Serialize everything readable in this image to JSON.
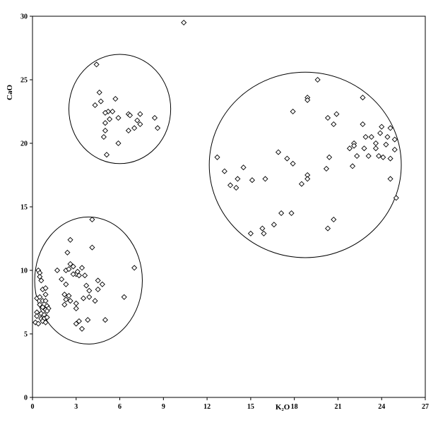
{
  "chart_data": {
    "type": "scatter",
    "title": "",
    "xlabel": "K₂O",
    "ylabel": "CaO",
    "xlim": [
      0,
      27
    ],
    "ylim": [
      0,
      30
    ],
    "x_ticks": [
      0,
      3,
      6,
      9,
      12,
      15,
      18,
      21,
      24,
      27
    ],
    "y_ticks": [
      0,
      5,
      10,
      15,
      20,
      25,
      30
    ],
    "x_tick_labels": [
      "0",
      "3",
      "6",
      "9",
      "12",
      "15",
      "18",
      "21",
      "24",
      "27"
    ],
    "y_tick_labels": [
      "0",
      "5",
      "10",
      "15",
      "20",
      "25",
      "30"
    ],
    "grid": false,
    "marker": "diamond",
    "clusters": [
      {
        "cx": 6.0,
        "cy": 22.7,
        "rx": 3.5,
        "ry": 4.3
      },
      {
        "cx": 3.85,
        "cy": 9.2,
        "rx": 3.7,
        "ry": 5.0
      },
      {
        "cx": 18.75,
        "cy": 18.3,
        "rx": 6.6,
        "ry": 7.3
      }
    ],
    "series": [
      {
        "points": [
          [
            10.4,
            29.5
          ],
          [
            4.4,
            26.2
          ],
          [
            4.6,
            24.0
          ],
          [
            4.3,
            23.0
          ],
          [
            4.7,
            23.3
          ],
          [
            5.2,
            22.5
          ],
          [
            5.5,
            22.5
          ],
          [
            5.7,
            23.5
          ],
          [
            5.0,
            22.4
          ],
          [
            5.0,
            21.6
          ],
          [
            5.3,
            21.9
          ],
          [
            5.9,
            22.0
          ],
          [
            6.6,
            22.3
          ],
          [
            6.7,
            22.2
          ],
          [
            7.2,
            21.8
          ],
          [
            7.4,
            22.3
          ],
          [
            8.4,
            22.0
          ],
          [
            8.6,
            21.2
          ],
          [
            5.0,
            21.0
          ],
          [
            6.6,
            21.0
          ],
          [
            7.0,
            21.2
          ],
          [
            7.4,
            21.5
          ],
          [
            4.9,
            20.5
          ],
          [
            5.9,
            20.0
          ],
          [
            5.1,
            19.1
          ],
          [
            2.6,
            12.4
          ],
          [
            4.1,
            14.0
          ],
          [
            4.1,
            11.8
          ],
          [
            2.4,
            11.4
          ],
          [
            2.3,
            10.0
          ],
          [
            2.5,
            10.1
          ],
          [
            2.6,
            10.5
          ],
          [
            2.8,
            10.3
          ],
          [
            3.0,
            9.7
          ],
          [
            3.1,
            9.9
          ],
          [
            3.2,
            9.6
          ],
          [
            3.4,
            10.2
          ],
          [
            3.6,
            9.6
          ],
          [
            1.7,
            10.0
          ],
          [
            2.0,
            9.3
          ],
          [
            2.3,
            8.9
          ],
          [
            2.8,
            9.7
          ],
          [
            4.5,
            9.2
          ],
          [
            4.8,
            8.9
          ],
          [
            4.5,
            8.5
          ],
          [
            7.0,
            10.2
          ],
          [
            3.7,
            8.8
          ],
          [
            3.9,
            8.4
          ],
          [
            2.2,
            8.1
          ],
          [
            2.5,
            8.0
          ],
          [
            2.6,
            7.6
          ],
          [
            3.0,
            7.4
          ],
          [
            3.5,
            7.8
          ],
          [
            2.3,
            7.7
          ],
          [
            2.2,
            7.3
          ],
          [
            3.9,
            7.9
          ],
          [
            4.3,
            7.6
          ],
          [
            6.3,
            7.9
          ],
          [
            3.0,
            7.0
          ],
          [
            3.0,
            5.8
          ],
          [
            3.2,
            6.0
          ],
          [
            3.8,
            6.1
          ],
          [
            5.0,
            6.1
          ],
          [
            3.4,
            5.4
          ],
          [
            0.4,
            10.0
          ],
          [
            0.5,
            9.8
          ],
          [
            0.5,
            9.5
          ],
          [
            0.6,
            9.2
          ],
          [
            0.7,
            8.5
          ],
          [
            0.9,
            8.6
          ],
          [
            0.9,
            8.1
          ],
          [
            0.3,
            7.8
          ],
          [
            0.5,
            7.9
          ],
          [
            0.7,
            7.6
          ],
          [
            0.9,
            7.6
          ],
          [
            0.5,
            7.3
          ],
          [
            0.7,
            7.1
          ],
          [
            1.0,
            7.2
          ],
          [
            1.1,
            7.0
          ],
          [
            0.9,
            6.9
          ],
          [
            1.0,
            6.8
          ],
          [
            0.3,
            6.7
          ],
          [
            0.6,
            6.6
          ],
          [
            0.8,
            6.5
          ],
          [
            0.3,
            6.4
          ],
          [
            0.6,
            6.2
          ],
          [
            0.8,
            6.2
          ],
          [
            1.0,
            6.3
          ],
          [
            0.2,
            5.9
          ],
          [
            0.4,
            5.8
          ],
          [
            0.7,
            6.0
          ],
          [
            0.9,
            5.9
          ],
          [
            19.6,
            25.0
          ],
          [
            18.9,
            23.6
          ],
          [
            18.9,
            23.4
          ],
          [
            22.7,
            23.6
          ],
          [
            17.9,
            22.5
          ],
          [
            20.3,
            22.0
          ],
          [
            20.9,
            22.3
          ],
          [
            20.7,
            21.5
          ],
          [
            22.7,
            21.5
          ],
          [
            24.0,
            21.3
          ],
          [
            24.6,
            21.2
          ],
          [
            23.9,
            20.8
          ],
          [
            22.9,
            20.5
          ],
          [
            23.3,
            20.5
          ],
          [
            24.4,
            20.5
          ],
          [
            24.9,
            20.3
          ],
          [
            22.1,
            20.0
          ],
          [
            23.6,
            20.0
          ],
          [
            21.8,
            19.6
          ],
          [
            22.1,
            19.8
          ],
          [
            22.8,
            19.6
          ],
          [
            23.6,
            19.6
          ],
          [
            24.3,
            19.9
          ],
          [
            24.9,
            19.5
          ],
          [
            16.9,
            19.3
          ],
          [
            17.5,
            18.8
          ],
          [
            17.9,
            18.4
          ],
          [
            20.4,
            18.9
          ],
          [
            22.3,
            19.0
          ],
          [
            23.1,
            19.0
          ],
          [
            23.8,
            19.0
          ],
          [
            24.1,
            18.9
          ],
          [
            24.6,
            18.8
          ],
          [
            12.7,
            18.9
          ],
          [
            14.5,
            18.1
          ],
          [
            20.2,
            18.0
          ],
          [
            22.0,
            18.2
          ],
          [
            13.2,
            17.8
          ],
          [
            18.9,
            17.5
          ],
          [
            18.9,
            17.2
          ],
          [
            14.1,
            17.2
          ],
          [
            15.1,
            17.1
          ],
          [
            16.0,
            17.2
          ],
          [
            18.5,
            16.8
          ],
          [
            24.6,
            17.2
          ],
          [
            13.6,
            16.7
          ],
          [
            14.0,
            16.5
          ],
          [
            25.0,
            15.7
          ],
          [
            17.1,
            14.5
          ],
          [
            17.8,
            14.5
          ],
          [
            20.7,
            14.0
          ],
          [
            16.6,
            13.6
          ],
          [
            15.8,
            13.3
          ],
          [
            20.3,
            13.3
          ],
          [
            15.0,
            12.9
          ],
          [
            15.9,
            12.9
          ]
        ]
      }
    ]
  }
}
